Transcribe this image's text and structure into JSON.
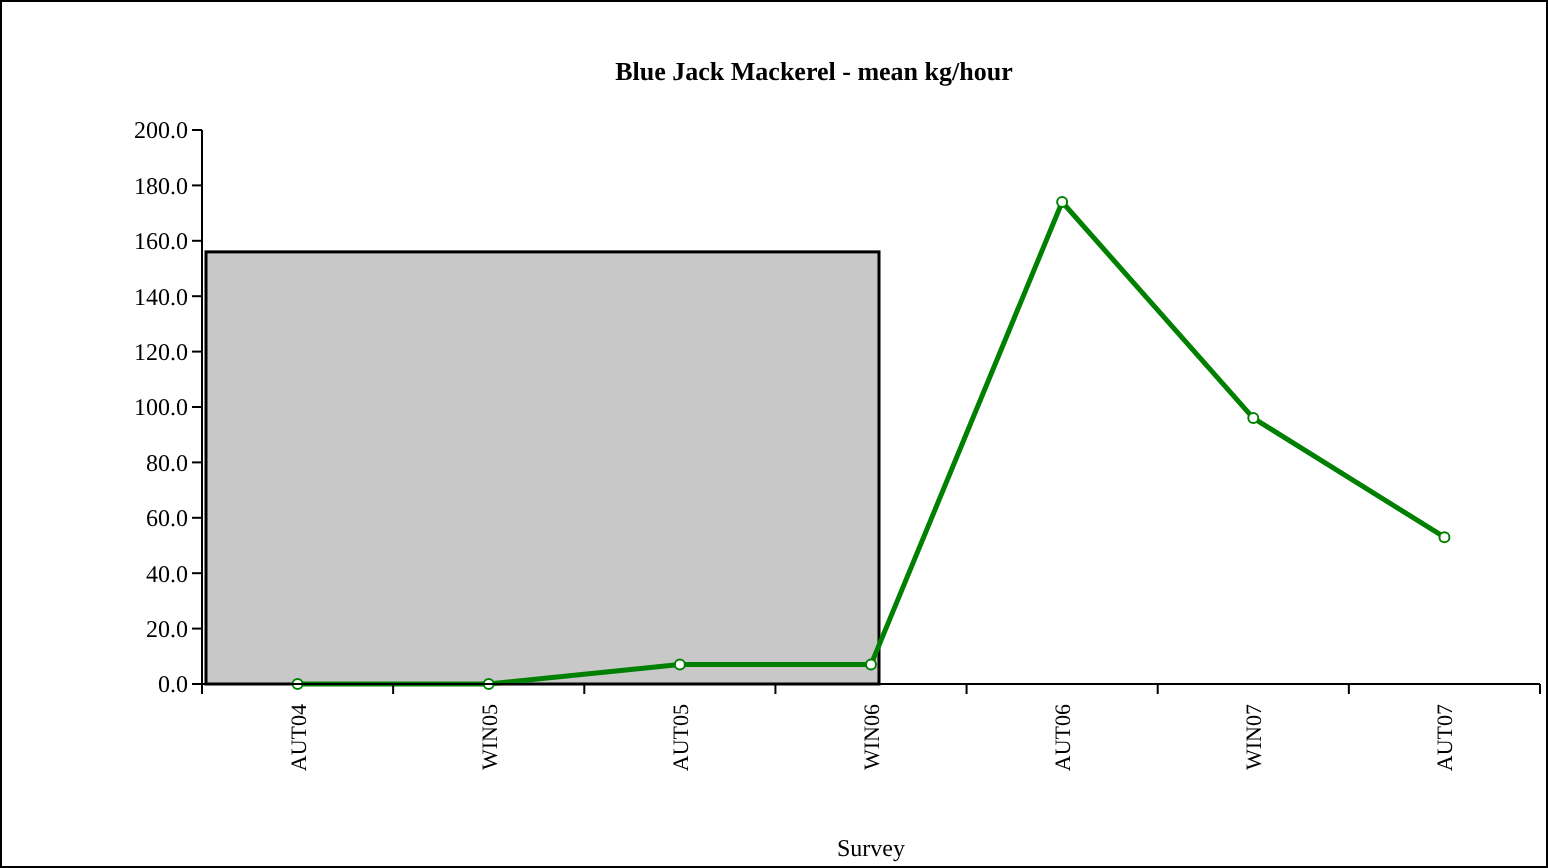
{
  "chart_data": {
    "type": "line",
    "title": "Blue Jack Mackerel - mean kg/hour",
    "xlabel": "Survey",
    "categories": [
      "AUT04",
      "WIN05",
      "AUT05",
      "WIN06",
      "AUT06",
      "WIN07",
      "AUT07"
    ],
    "series": [
      {
        "color": "#008000",
        "values": [
          0,
          0,
          7,
          7,
          174,
          96,
          53
        ]
      }
    ],
    "ylim": [
      0,
      200
    ],
    "yticks": [
      {
        "value": 0,
        "label": "0.0"
      },
      {
        "value": 20,
        "label": "20.0"
      },
      {
        "value": 40,
        "label": "40.0"
      },
      {
        "value": 60,
        "label": "60.0"
      },
      {
        "value": 80,
        "label": "80.0"
      },
      {
        "value": 100,
        "label": "100.0"
      },
      {
        "value": 120,
        "label": "120.0"
      },
      {
        "value": 140,
        "label": "140.0"
      },
      {
        "value": 160,
        "label": "160.0"
      },
      {
        "value": 180,
        "label": "180.0"
      },
      {
        "value": 200,
        "label": "200.0"
      }
    ],
    "marker": "circle"
  }
}
